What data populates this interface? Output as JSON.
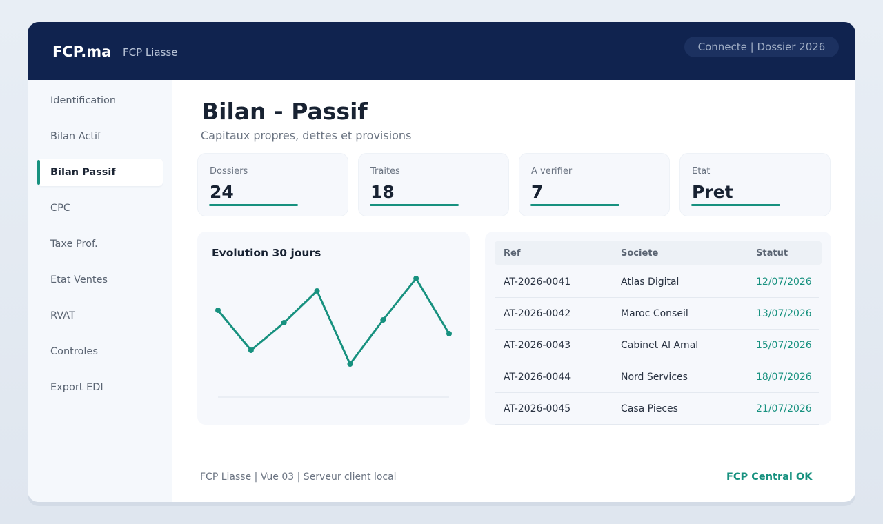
{
  "header": {
    "brand": "FCP.ma",
    "app_name": "FCP Liasse",
    "status": "Connecte | Dossier 2026"
  },
  "sidebar": {
    "items": [
      {
        "label": "Identification",
        "active": false
      },
      {
        "label": "Bilan Actif",
        "active": false
      },
      {
        "label": "Bilan Passif",
        "active": true
      },
      {
        "label": "CPC",
        "active": false
      },
      {
        "label": "Taxe Prof.",
        "active": false
      },
      {
        "label": "Etat Ventes",
        "active": false
      },
      {
        "label": "RVAT",
        "active": false
      },
      {
        "label": "Controles",
        "active": false
      },
      {
        "label": "Export EDI",
        "active": false
      }
    ]
  },
  "main": {
    "title": "Bilan - Passif",
    "subtitle": "Capitaux propres, dettes et provisions",
    "stats": [
      {
        "label": "Dossiers",
        "value": "24"
      },
      {
        "label": "Traites",
        "value": "18"
      },
      {
        "label": "A verifier",
        "value": "7"
      },
      {
        "label": "Etat",
        "value": "Pret"
      }
    ],
    "table": {
      "headers": [
        "Ref",
        "Societe",
        "Statut"
      ],
      "rows": [
        [
          "AT-2026-0041",
          "Atlas Digital",
          "12/07/2026"
        ],
        [
          "AT-2026-0042",
          "Maroc Conseil",
          "13/07/2026"
        ],
        [
          "AT-2026-0043",
          "Cabinet Al Amal",
          "15/07/2026"
        ],
        [
          "AT-2026-0044",
          "Nord Services",
          "18/07/2026"
        ],
        [
          "AT-2026-0045",
          "Casa Pieces",
          "21/07/2026"
        ]
      ]
    }
  },
  "chart_data": {
    "type": "line",
    "title": "Evolution 30 jours",
    "x": [
      1,
      2,
      3,
      4,
      5,
      6,
      7,
      8
    ],
    "series": [
      {
        "values": [
          63,
          34,
          54,
          77,
          24,
          56,
          86,
          46
        ]
      }
    ],
    "ylim": [
      0,
      100
    ],
    "grid": false,
    "color": "#17917f"
  },
  "footer": {
    "info": "FCP Liasse | Vue 03 | Serveur client local",
    "status": "FCP Central OK"
  },
  "colors": {
    "topbar": "#10234f",
    "accent": "#17917f",
    "sidebar_bg": "#f5f8fc"
  }
}
